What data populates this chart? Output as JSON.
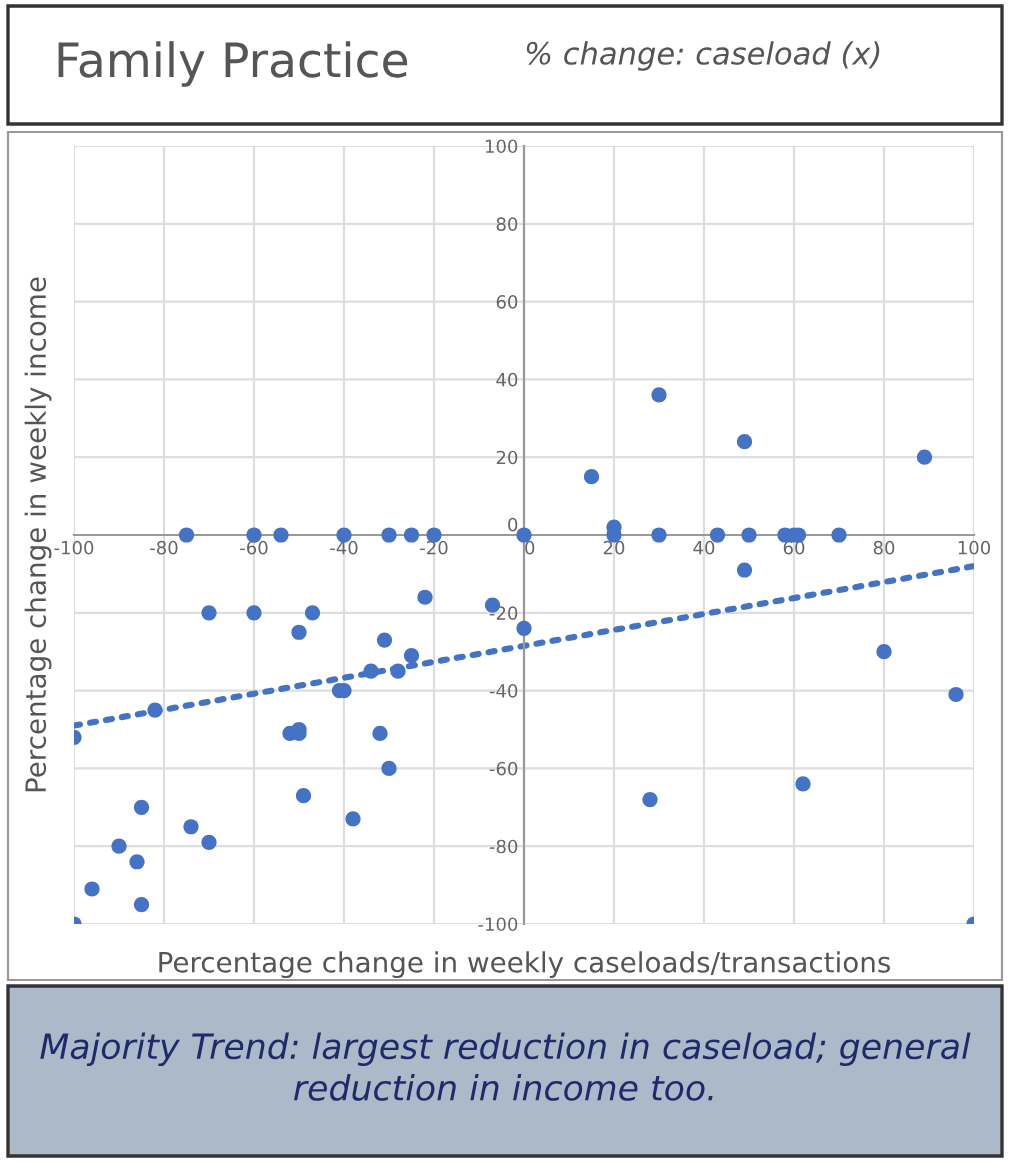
{
  "chart_data": {
    "type": "scatter",
    "title": "Family Practice",
    "subtitle": "% change: caseload (x)",
    "xlabel": "Percentage change in weekly caseloads/transactions",
    "ylabel": "Percentage change in weekly income",
    "annotations": [
      "Majority Trend: largest reduction in caseload; general reduction in income too."
    ],
    "xlim": [
      -100,
      100
    ],
    "ylim": [
      -100,
      100
    ],
    "xticks": [
      -100,
      -80,
      -60,
      -40,
      -20,
      0,
      20,
      40,
      60,
      80,
      100
    ],
    "yticks": [
      -100,
      -80,
      -60,
      -40,
      -20,
      0,
      20,
      40,
      60,
      80,
      100
    ],
    "grid": true,
    "marker": "circle",
    "series": [
      {
        "color": "#4472c4",
        "x": [
          -75,
          -60,
          -54,
          -40,
          -30,
          -25,
          -20,
          0,
          -70,
          -60,
          -47,
          -22,
          -50,
          -31,
          -25,
          -34,
          -28,
          -7,
          0,
          -82,
          -41,
          -40,
          -52,
          -50,
          -50,
          -32,
          -30,
          -49,
          -38,
          -100,
          -85,
          -74,
          -70,
          -90,
          -86,
          -96,
          -85,
          -100,
          15,
          20,
          20,
          30,
          30,
          43,
          49,
          50,
          49,
          58,
          60,
          61,
          70,
          89,
          80,
          96,
          62,
          28,
          100
        ],
        "values": [
          0,
          0,
          0,
          0,
          0,
          0,
          0,
          0,
          -20,
          -20,
          -20,
          -16,
          -25,
          -27,
          -31,
          -35,
          -35,
          -18,
          -24,
          -45,
          -40,
          -40,
          -51,
          -50,
          -51,
          -51,
          -60,
          -67,
          -73,
          -52,
          -70,
          -75,
          -79,
          -80,
          -84,
          -91,
          -95,
          -100,
          15,
          2,
          0,
          36,
          0,
          0,
          24,
          0,
          -9,
          0,
          0,
          0,
          0,
          20,
          -30,
          -41,
          -64,
          -68,
          -100
        ]
      },
      {
        "type": "line",
        "marker": "none",
        "color": "#4472c4",
        "line_style": "dotted",
        "x": [
          -100,
          100
        ],
        "values": [
          -49,
          -8
        ]
      }
    ]
  }
}
